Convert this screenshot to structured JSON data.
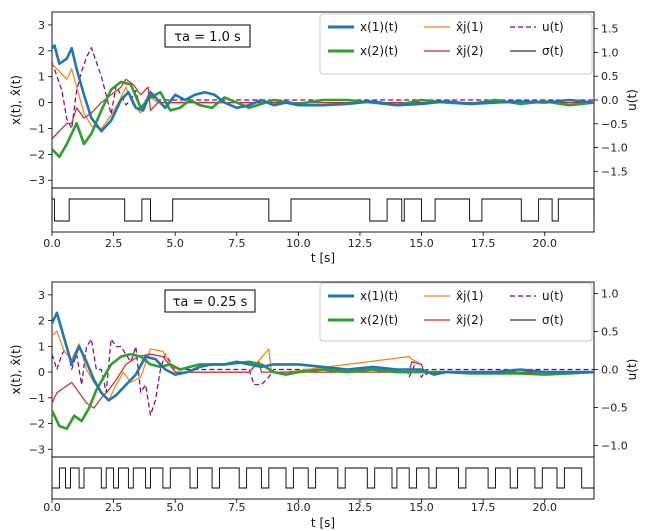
{
  "chart_data": [
    {
      "type": "line",
      "annotation": "τa = 1.0 s",
      "xlabel": "t [s]",
      "ylabel_left": "x(t), x̂(t)",
      "ylabel_right": "u(t)",
      "xlim": [
        0,
        22
      ],
      "ylim_left": [
        -3.3,
        3.5
      ],
      "ylim_right": [
        -1.85,
        1.85
      ],
      "xticks": [
        "0.0",
        "2.5",
        "5.0",
        "7.5",
        "10.0",
        "12.5",
        "15.0",
        "17.5",
        "20.0"
      ],
      "yticks_left": [
        "3",
        "2",
        "1",
        "0",
        "−1",
        "−2",
        "−3"
      ],
      "yticks_right": [
        "1.5",
        "1.0",
        "0.5",
        "0.0",
        "−0.5",
        "−1.0",
        "−1.5"
      ],
      "legend": [
        {
          "label": "x(1)(t)",
          "color": "#1f77b4",
          "style": "solid-thick"
        },
        {
          "label": "x(2)(t)",
          "color": "#2ca02c",
          "style": "solid-thick"
        },
        {
          "label": "x̂j(1)",
          "color": "#ff7f0e",
          "style": "solid"
        },
        {
          "label": "x̂j(2)",
          "color": "#d62728",
          "style": "solid"
        },
        {
          "label": "u(t)",
          "color": "#800080",
          "style": "dashed"
        },
        {
          "label": "σ(t)",
          "color": "#000000",
          "style": "solid-thin"
        }
      ],
      "series": [
        {
          "name": "x(1)(t)",
          "axis": "left",
          "color": "#1f77b4",
          "width": 2.6,
          "x": [
            0,
            0.1,
            0.3,
            0.6,
            0.8,
            1.0,
            1.3,
            1.6,
            2.0,
            2.4,
            2.8,
            3.1,
            3.4,
            3.7,
            4.0,
            4.3,
            4.6,
            5.0,
            5.4,
            5.8,
            6.2,
            6.6,
            7.0,
            7.5,
            8,
            8.5,
            9,
            9.5,
            10,
            11,
            12,
            13,
            14,
            15,
            16,
            17,
            18,
            19,
            20,
            21,
            22
          ],
          "y": [
            2.1,
            2.2,
            1.5,
            1.7,
            2.1,
            1.3,
            0.3,
            -0.6,
            -1.1,
            -0.7,
            0.1,
            0.4,
            -0.2,
            -0.3,
            0.4,
            0.1,
            -0.2,
            0.3,
            0.1,
            0.3,
            0.4,
            0.3,
            0.0,
            -0.2,
            -0.1,
            0.1,
            -0.1,
            0.0,
            -0.1,
            -0.1,
            -0.05,
            0.05,
            -0.1,
            -0.05,
            0.05,
            -0.05,
            0.0,
            0.05,
            0.0,
            0.1,
            0.0
          ]
        },
        {
          "name": "x(2)(t)",
          "axis": "left",
          "color": "#2ca02c",
          "width": 2.6,
          "x": [
            0,
            0.3,
            0.6,
            1.0,
            1.3,
            1.6,
            2.0,
            2.4,
            2.8,
            3.2,
            3.6,
            4.0,
            4.4,
            4.8,
            5.2,
            5.6,
            6.0,
            6.5,
            7,
            7.5,
            8,
            9,
            10,
            11,
            12,
            13,
            14,
            15,
            16,
            17,
            18,
            19,
            20,
            21,
            22
          ],
          "y": [
            -1.8,
            -2.1,
            -1.6,
            -0.8,
            -1.6,
            -1.2,
            -0.3,
            0.5,
            0.8,
            0.7,
            -0.2,
            0.2,
            0.4,
            -0.3,
            -0.2,
            0.1,
            -0.1,
            -0.2,
            0.2,
            0.0,
            -0.2,
            0.1,
            -0.05,
            0.1,
            0.1,
            0.0,
            -0.1,
            0.1,
            0.0,
            -0.05,
            0.1,
            -0.05,
            0.05,
            -0.1,
            0.0
          ]
        },
        {
          "name": "x̂j(1)",
          "axis": "left",
          "color": "#ff7f0e",
          "width": 1.2,
          "x": [
            0,
            0.3,
            0.6,
            0.8,
            1.0,
            1.3,
            1.6,
            2.0,
            2.4,
            2.8,
            3.0,
            3.3,
            3.6,
            3.9,
            4.0,
            4.3,
            4.6,
            5.0,
            22
          ],
          "y": [
            1.5,
            1.2,
            0.9,
            1.3,
            0.6,
            -0.4,
            -0.9,
            -1.0,
            -0.5,
            0.2,
            0.6,
            -0.1,
            -0.4,
            0.3,
            0.2,
            0.0,
            0.0,
            0.0,
            0.0
          ]
        },
        {
          "name": "x̂j(2)",
          "axis": "left",
          "color": "#d62728",
          "width": 1.2,
          "x": [
            0,
            0.3,
            0.6,
            0.8,
            1.0,
            1.3,
            1.6,
            2.0,
            2.4,
            2.8,
            3.0,
            3.3,
            3.6,
            3.9,
            4.0,
            4.3,
            4.6,
            5.0,
            22
          ],
          "y": [
            -1.4,
            -1.1,
            -0.8,
            -0.8,
            -0.2,
            -0.6,
            -0.4,
            0.0,
            0.3,
            0.6,
            0.9,
            0.7,
            0.3,
            0.6,
            -0.3,
            0.0,
            0.0,
            0.0,
            0.0
          ]
        },
        {
          "name": "u(t)",
          "axis": "right",
          "color": "#800080",
          "width": 1.2,
          "dashed": true,
          "x": [
            0,
            0.2,
            0.4,
            0.6,
            0.8,
            1.0,
            1.2,
            1.4,
            1.6,
            1.8,
            2.0,
            2.2,
            2.4,
            2.6,
            2.8,
            3.0,
            3.2,
            3.4,
            3.6,
            3.8,
            4.0,
            4.2,
            4.4,
            5.0,
            22
          ],
          "y": [
            0.8,
            0.5,
            0.2,
            -0.4,
            -0.6,
            0.2,
            0.6,
            0.9,
            1.1,
            0.8,
            0.5,
            0.1,
            -0.3,
            0.3,
            0.1,
            -0.1,
            0.0,
            0.2,
            -0.2,
            0.0,
            0.1,
            0.0,
            0.0,
            0.0,
            0.0
          ]
        }
      ],
      "switching": {
        "name": "σ(t)",
        "on_intervals": [
          [
            0,
            0.1
          ],
          [
            0.7,
            2.95
          ],
          [
            3.65,
            4.0
          ],
          [
            4.9,
            8.8
          ],
          [
            9.7,
            12.9
          ],
          [
            13.6,
            14.2
          ],
          [
            14.3,
            15.0
          ],
          [
            15.55,
            16.95
          ],
          [
            17.45,
            19.05
          ],
          [
            19.75,
            20.3
          ],
          [
            20.55,
            22.0
          ]
        ]
      }
    },
    {
      "type": "line",
      "annotation": "τa = 0.25 s",
      "xlabel": "t [s]",
      "ylabel_left": "x(t), x̂(t)",
      "ylabel_right": "u(t)",
      "xlim": [
        0,
        22
      ],
      "ylim_left": [
        -3.3,
        3.5
      ],
      "ylim_right": [
        -1.15,
        1.15
      ],
      "xticks": [
        "0.0",
        "2.5",
        "5.0",
        "7.5",
        "10.0",
        "12.5",
        "15.0",
        "17.5",
        "20.0"
      ],
      "yticks_left": [
        "3",
        "2",
        "1",
        "0",
        "−1",
        "−2",
        "−3"
      ],
      "yticks_right": [
        "1.0",
        "0.5",
        "0.0",
        "−0.5",
        "−1.0"
      ],
      "legend": [
        {
          "label": "x(1)(t)",
          "color": "#1f77b4",
          "style": "solid-thick"
        },
        {
          "label": "x(2)(t)",
          "color": "#2ca02c",
          "style": "solid-thick"
        },
        {
          "label": "x̂j(1)",
          "color": "#ff7f0e",
          "style": "solid"
        },
        {
          "label": "x̂j(2)",
          "color": "#d62728",
          "style": "solid"
        },
        {
          "label": "u(t)",
          "color": "#800080",
          "style": "dashed"
        },
        {
          "label": "σ(t)",
          "color": "#000000",
          "style": "solid-thin"
        }
      ],
      "series": [
        {
          "name": "x(1)(t)",
          "axis": "left",
          "color": "#1f77b4",
          "width": 2.6,
          "x": [
            0,
            0.2,
            0.5,
            0.8,
            1.1,
            1.4,
            1.7,
            2.0,
            2.3,
            2.6,
            3.0,
            3.4,
            3.8,
            4.2,
            4.6,
            5.0,
            5.5,
            6,
            6.5,
            7,
            7.5,
            8,
            8.5,
            9,
            10,
            11,
            12,
            13,
            14,
            15,
            15.5,
            16,
            17,
            18,
            19,
            20,
            21,
            22
          ],
          "y": [
            1.9,
            2.3,
            1.3,
            0.3,
            1.0,
            0.4,
            -0.3,
            -0.8,
            -1.1,
            -0.9,
            -0.5,
            -0.1,
            0.6,
            0.5,
            0.1,
            -0.1,
            0.0,
            0.2,
            0.3,
            0.3,
            0.4,
            0.3,
            0.2,
            0.3,
            0.3,
            0.2,
            0.1,
            0.2,
            0.1,
            0.1,
            -0.1,
            0.0,
            0.0,
            0.0,
            0.1,
            0.0,
            0.0,
            0.0
          ]
        },
        {
          "name": "x(2)(t)",
          "axis": "left",
          "color": "#2ca02c",
          "width": 2.6,
          "x": [
            0,
            0.3,
            0.6,
            0.9,
            1.2,
            1.5,
            1.8,
            2.1,
            2.4,
            2.8,
            3.2,
            3.6,
            4.0,
            4.4,
            4.8,
            5.2,
            5.6,
            6,
            7,
            8,
            8.5,
            9,
            9.5,
            10,
            11,
            12,
            13,
            14,
            15,
            16,
            17,
            18,
            19,
            20,
            21,
            22
          ],
          "y": [
            -1.5,
            -2.1,
            -2.2,
            -1.7,
            -1.9,
            -1.4,
            -0.7,
            -0.2,
            0.3,
            0.6,
            0.7,
            0.6,
            0.3,
            0.2,
            0.3,
            0.1,
            0.2,
            0.3,
            0.3,
            0.4,
            0.3,
            0.0,
            -0.1,
            0.0,
            0.1,
            0.0,
            0.1,
            0.0,
            0.0,
            0.0,
            -0.05,
            -0.05,
            -0.05,
            -0.1,
            -0.05,
            0.0
          ]
        },
        {
          "name": "x̂j(1)",
          "axis": "left",
          "color": "#ff7f0e",
          "width": 1.2,
          "x": [
            0,
            0.2,
            0.5,
            0.8,
            1.1,
            1.4,
            1.7,
            2.0,
            2.3,
            2.6,
            2.9,
            3.2,
            3.6,
            4.0,
            4.5,
            5.0,
            5.5,
            6,
            7,
            8,
            8.8,
            8.9,
            9.0,
            9.5,
            14.5,
            14.6,
            15.0,
            15.1,
            15.2,
            16,
            22
          ],
          "y": [
            1.4,
            1.6,
            0.8,
            0.5,
            1.1,
            0.1,
            -0.4,
            -0.8,
            -1.1,
            -0.5,
            0.0,
            -0.4,
            -0.2,
            0.9,
            0.8,
            0.0,
            0.0,
            0.0,
            0.0,
            0.0,
            0.9,
            0.0,
            0.0,
            0.0,
            0.6,
            0.5,
            0.3,
            0.0,
            0.0,
            0.0,
            0.0
          ]
        },
        {
          "name": "x̂j(2)",
          "axis": "left",
          "color": "#d62728",
          "width": 1.2,
          "x": [
            0,
            0.2,
            0.5,
            0.8,
            1.1,
            1.4,
            1.7,
            2.0,
            2.3,
            2.6,
            3.0,
            3.5,
            4.0,
            4.5,
            5.0,
            5.5,
            8,
            8.4,
            8.5,
            9.0,
            14.5,
            14.6,
            15.0,
            15.1,
            15.2,
            15.3,
            16,
            22
          ],
          "y": [
            -1.2,
            -0.8,
            -0.6,
            -0.4,
            -0.8,
            -1.2,
            -1.4,
            -1.0,
            -0.7,
            -0.3,
            0.3,
            0.6,
            0.7,
            0.6,
            0.0,
            0.0,
            0.0,
            0.4,
            0.0,
            0.0,
            0.0,
            0.4,
            0.3,
            0.0,
            -0.1,
            0.0,
            0.0,
            0.0
          ]
        },
        {
          "name": "u(t)",
          "axis": "right",
          "color": "#800080",
          "width": 1.2,
          "dashed": true,
          "x": [
            0,
            0.2,
            0.4,
            0.6,
            0.8,
            1.0,
            1.2,
            1.4,
            1.6,
            1.8,
            2.0,
            2.2,
            2.4,
            2.6,
            2.8,
            3.0,
            3.2,
            3.4,
            3.6,
            3.8,
            4.0,
            4.2,
            4.4,
            4.6,
            5.0,
            5.5,
            8.0,
            8.2,
            8.5,
            8.8,
            9.0,
            14.4,
            14.5,
            14.7,
            15.0,
            15.2,
            15.5,
            22
          ],
          "y": [
            0.2,
            0.0,
            0.2,
            0.3,
            0.0,
            0.2,
            -0.2,
            0.3,
            0.4,
            0.0,
            0.0,
            -0.3,
            0.4,
            0.3,
            0.3,
            0.2,
            0.1,
            0.3,
            -0.3,
            -0.2,
            -0.6,
            -0.4,
            0.0,
            0.2,
            0.0,
            0.0,
            0.0,
            -0.2,
            -0.2,
            -0.1,
            0.0,
            0.0,
            -0.1,
            0.05,
            -0.1,
            0.0,
            0.0,
            0.0
          ]
        }
      ],
      "switching": {
        "name": "σ(t)",
        "on_intervals": [
          [
            0.3,
            0.55
          ],
          [
            0.75,
            1.1
          ],
          [
            1.3,
            2.0
          ],
          [
            2.2,
            2.5
          ],
          [
            2.7,
            3.1
          ],
          [
            3.3,
            3.8
          ],
          [
            4.0,
            4.5
          ],
          [
            4.8,
            5.6
          ],
          [
            5.9,
            6.5
          ],
          [
            6.8,
            7.6
          ],
          [
            7.9,
            8.5
          ],
          [
            8.8,
            9.5
          ],
          [
            9.8,
            10.4
          ],
          [
            10.7,
            11.6
          ],
          [
            11.9,
            12.8
          ],
          [
            13.1,
            13.8
          ],
          [
            14.0,
            14.5
          ],
          [
            14.8,
            15.3
          ],
          [
            15.6,
            16.5
          ],
          [
            16.8,
            17.7
          ],
          [
            18.0,
            18.6
          ],
          [
            18.9,
            19.6
          ],
          [
            19.9,
            20.5
          ],
          [
            20.8,
            21.5
          ]
        ]
      }
    }
  ]
}
